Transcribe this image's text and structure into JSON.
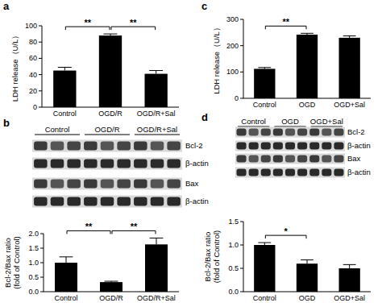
{
  "panel_labels": [
    "a",
    "b",
    "c",
    "d"
  ],
  "chart_data": [
    {
      "type": "bar",
      "y_label": [
        "LDH release（U/L）"
      ],
      "categories": [
        "Control",
        "OGD/R",
        "OGD/R+Sal"
      ],
      "values": [
        45,
        88,
        41
      ],
      "errors": [
        4,
        2,
        4
      ],
      "color": "#000000",
      "ylim": [
        0,
        100
      ],
      "yticks": [
        0,
        20,
        40,
        60,
        80,
        100
      ],
      "annotations": [
        {
          "text": "**",
          "between": [
            "Control",
            "OGD/R"
          ]
        },
        {
          "text": "**",
          "between": [
            "OGD/R",
            "OGD/R+Sal"
          ]
        }
      ]
    },
    {
      "type": "bar",
      "y_label": [
        "Bcl-2/Bax ratio",
        "(fold of Control)"
      ],
      "categories": [
        "Control",
        "OGD/R",
        "OGD/R+Sal"
      ],
      "values": [
        1.0,
        0.33,
        1.63
      ],
      "errors": [
        0.2,
        0.03,
        0.22
      ],
      "color": "#000000",
      "ylim": [
        0,
        2
      ],
      "yticks": [
        {
          "value": 0,
          "label": "0.0"
        },
        {
          "value": 0.5,
          "label": "0.5"
        },
        {
          "value": 1,
          "label": "1.0"
        },
        {
          "value": 1.5,
          "label": "1.5"
        },
        {
          "value": 2,
          "label": "2.0"
        }
      ],
      "annotations": [
        {
          "text": "**",
          "between": [
            "Control",
            "OGD/R"
          ]
        },
        {
          "text": "**",
          "between": [
            "OGD/R",
            "OGD/R+Sal"
          ]
        }
      ]
    },
    {
      "type": "bar",
      "y_label": [
        "LDH release（U/L）"
      ],
      "categories": [
        "Control",
        "OGD",
        "OGD+Sal"
      ],
      "values": [
        112,
        242,
        230
      ],
      "errors": [
        5,
        5,
        7
      ],
      "color": "#000000",
      "ylim": [
        0,
        300
      ],
      "yticks": [
        0,
        100,
        200,
        300
      ],
      "annotations": [
        {
          "text": "**",
          "between": [
            "Control",
            "OGD"
          ]
        }
      ]
    },
    {
      "type": "bar",
      "y_label": [
        "Bcl-2/Bax ratio",
        "(fold of Control)"
      ],
      "categories": [
        "Control",
        "OGD",
        "OGD+Sal"
      ],
      "values": [
        1.0,
        0.6,
        0.5
      ],
      "errors": [
        0.05,
        0.08,
        0.08
      ],
      "color": "#000000",
      "ylim": [
        0,
        1.5
      ],
      "yticks": [
        {
          "value": 0,
          "label": "0.0"
        },
        {
          "value": 0.5,
          "label": "0.5"
        },
        {
          "value": 1,
          "label": "1.0"
        },
        {
          "value": 1.5,
          "label": "1.5"
        }
      ],
      "annotations": [
        {
          "text": "*",
          "between": [
            "Control",
            "OGD"
          ]
        }
      ]
    }
  ],
  "blots": [
    {
      "lanes": [
        "Control",
        "OGD/R",
        "OGD/R+Sal"
      ],
      "rows": [
        "Bcl-2",
        "β-actin",
        "Bax",
        "β-actin"
      ]
    },
    {
      "lanes": [
        "Control",
        "OGD",
        "OGD+Sal"
      ],
      "rows": [
        "Bcl-2",
        "β-actin",
        "Bax",
        "β-actin"
      ]
    }
  ]
}
